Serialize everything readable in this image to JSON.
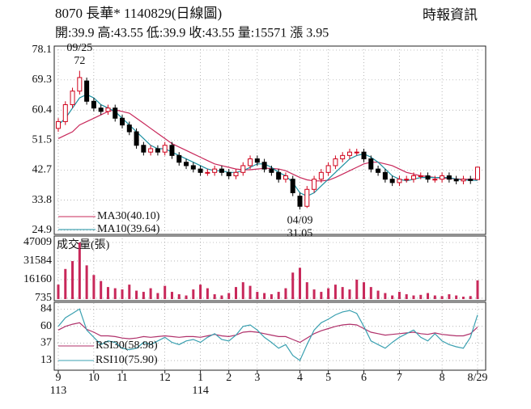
{
  "header": {
    "title": "8070  長華* 1140829(日線圖)",
    "source": "時報資訊",
    "quote": "開:39.9 高:43.55 低:39.9 收:43.55 量:15571 漲 3.95"
  },
  "chart_data": [
    {
      "type": "candlestick",
      "up_color": "#d0021b",
      "down_color": "#000000",
      "open": [
        55,
        57,
        62,
        66,
        69,
        63,
        61,
        60,
        61,
        58,
        56,
        54,
        50,
        48,
        49,
        48,
        50,
        47,
        45,
        44,
        43,
        42,
        42,
        43,
        42,
        41,
        42,
        44,
        46,
        45,
        43,
        42,
        40,
        40,
        35,
        32,
        37,
        40,
        42,
        44,
        46,
        47,
        48,
        48,
        46,
        43,
        42,
        40,
        39,
        40,
        40,
        41,
        41,
        40,
        40,
        41,
        40,
        39.5,
        40,
        39.9
      ],
      "high": [
        58,
        63,
        67,
        72,
        70,
        64,
        62,
        62,
        62,
        59,
        57,
        55,
        51,
        50,
        50,
        51,
        51,
        48,
        46,
        45,
        44,
        43,
        44,
        44,
        43,
        43,
        45,
        47,
        47,
        46,
        44,
        43,
        42,
        41,
        36,
        38,
        41,
        43,
        45,
        47,
        48,
        49,
        49,
        49,
        47,
        44,
        43,
        41,
        41,
        41,
        42,
        42,
        42,
        41,
        42,
        42,
        41,
        41,
        41,
        43.55
      ],
      "low": [
        54,
        56,
        61,
        65,
        62,
        60,
        59,
        59,
        57,
        55,
        53,
        49,
        47,
        47,
        47,
        47,
        46,
        44,
        43,
        42,
        41,
        41,
        41,
        41,
        40,
        40,
        41,
        43,
        44,
        42,
        41,
        39,
        39,
        35,
        31.05,
        31.5,
        36,
        39,
        41,
        43,
        45,
        46,
        47,
        45,
        42,
        41,
        39,
        38,
        38,
        39,
        39,
        40,
        39,
        39,
        39,
        39,
        38.5,
        38.5,
        38.6,
        39.9
      ],
      "close": [
        57,
        62,
        66,
        70,
        63,
        61,
        60,
        61,
        58,
        56,
        54,
        50,
        48,
        49,
        48,
        50,
        47,
        45,
        44,
        43,
        42,
        42,
        43,
        42,
        41,
        42,
        44,
        46,
        45,
        43,
        42,
        40,
        41,
        36,
        32,
        37,
        40,
        42,
        44,
        46,
        47,
        48,
        48,
        46,
        43,
        42,
        40,
        39,
        40,
        40,
        41,
        41,
        40,
        40,
        41,
        40,
        39.5,
        40,
        39.6,
        43.55
      ],
      "series": [
        {
          "name": "MA30(40.10)",
          "color": "#c8285a",
          "values": [
            52,
            53,
            54,
            56,
            57,
            58,
            59,
            60,
            60.5,
            60,
            59.5,
            58,
            56.5,
            55,
            53.5,
            52,
            50.5,
            49.5,
            48.5,
            47.5,
            46.5,
            45.5,
            44.5,
            44,
            43.5,
            43,
            42.8,
            42.8,
            43,
            43.2,
            43.2,
            43,
            42.5,
            41.5,
            40.5,
            39.8,
            39.5,
            39.5,
            39.7,
            40.5,
            41.5,
            42.5,
            43.5,
            44.5,
            45,
            45,
            44.5,
            44,
            43,
            42,
            41.5,
            41,
            40.8,
            40.5,
            40.3,
            40.2,
            40.1,
            40,
            40,
            40.1
          ]
        },
        {
          "name": "MA10(39.64)",
          "color": "#1a8fa0",
          "values": [
            56,
            58,
            61,
            64,
            65,
            64,
            62,
            61,
            60,
            58,
            56,
            54,
            52,
            50,
            49,
            49,
            48,
            47,
            46,
            45,
            44,
            43,
            42.5,
            42.5,
            42,
            42,
            42.5,
            43.5,
            44.5,
            44.5,
            43.5,
            42,
            41,
            39,
            36,
            35,
            36,
            38,
            40,
            42,
            44,
            46,
            47,
            47.5,
            46.5,
            45,
            43,
            41,
            40,
            39.5,
            40,
            40.5,
            40.5,
            40.5,
            40.5,
            40.5,
            40,
            39.8,
            39.7,
            39.64
          ]
        }
      ],
      "annotations": [
        {
          "date": "09/25",
          "value": 72,
          "index": 3
        },
        {
          "date": "04/09",
          "value": 31.05,
          "index": 34
        }
      ],
      "ylim": [
        24.9,
        78.1
      ],
      "yticks": [
        78.1,
        69.3,
        60.4,
        51.5,
        42.7,
        33.8,
        24.9
      ],
      "grid": true
    },
    {
      "type": "bar",
      "name": "成交量(張)",
      "color": "#c8285a",
      "values": [
        12000,
        25000,
        31584,
        47009,
        28000,
        20000,
        15000,
        10000,
        9000,
        8000,
        12000,
        7000,
        6000,
        9000,
        5000,
        11000,
        6000,
        4000,
        3000,
        8000,
        12000,
        9000,
        4000,
        3000,
        5000,
        10000,
        14000,
        11000,
        6000,
        5000,
        4000,
        6000,
        9000,
        22000,
        26000,
        14000,
        8000,
        6000,
        9000,
        12000,
        10000,
        8000,
        16160,
        14000,
        10000,
        7000,
        5000,
        3000,
        6000,
        4000,
        3000,
        3500,
        5000,
        3000,
        2500,
        4000,
        3000,
        2000,
        2500,
        15571
      ],
      "ylim": [
        0,
        47009
      ],
      "yticks": [
        47009,
        31584,
        16160,
        735
      ],
      "grid": true
    },
    {
      "type": "line",
      "series": [
        {
          "name": "RSI30(58.98)",
          "color": "#b0306a",
          "values": [
            55,
            60,
            63,
            65,
            56,
            52,
            47,
            47,
            46,
            44,
            43,
            44,
            46,
            45,
            46,
            47,
            46,
            45,
            46,
            46,
            45,
            47,
            49,
            47,
            46,
            48,
            52,
            53,
            52,
            50,
            48,
            46,
            46,
            42,
            38,
            44,
            50,
            54,
            57,
            60,
            62,
            63,
            62,
            57,
            52,
            50,
            48,
            49,
            50,
            51,
            52,
            50,
            49,
            51,
            49,
            48,
            47,
            47,
            50,
            58.98
          ]
        },
        {
          "name": "RSI10(75.90)",
          "color": "#3aa0b0",
          "values": [
            60,
            72,
            78,
            84,
            55,
            45,
            35,
            40,
            38,
            30,
            28,
            30,
            38,
            35,
            40,
            45,
            38,
            35,
            40,
            42,
            38,
            45,
            50,
            42,
            40,
            48,
            60,
            62,
            55,
            45,
            38,
            30,
            35,
            20,
            13,
            35,
            55,
            65,
            70,
            76,
            80,
            82,
            78,
            60,
            40,
            35,
            30,
            38,
            45,
            50,
            55,
            45,
            40,
            50,
            40,
            35,
            32,
            30,
            45,
            75.9
          ]
        }
      ],
      "ylim": [
        3,
        91
      ],
      "yticks": [
        84,
        60,
        37,
        13
      ],
      "grid": true,
      "xticks": [
        {
          "value": 0,
          "label": "9"
        },
        {
          "value": 5,
          "label": "10"
        },
        {
          "value": 9,
          "label": "11"
        },
        {
          "value": 15,
          "label": "12"
        },
        {
          "value": 20,
          "label": "1"
        },
        {
          "value": 24,
          "label": "2"
        },
        {
          "value": 28,
          "label": "3"
        },
        {
          "value": 34,
          "label": "4"
        },
        {
          "value": 38,
          "label": "5"
        },
        {
          "value": 43,
          "label": "6"
        },
        {
          "value": 48,
          "label": "7"
        },
        {
          "value": 54,
          "label": "8"
        },
        {
          "value": 59,
          "label": "8/29"
        }
      ],
      "year_labels": [
        {
          "text": "113",
          "index": 0
        },
        {
          "text": "114",
          "index": 20
        }
      ]
    }
  ]
}
